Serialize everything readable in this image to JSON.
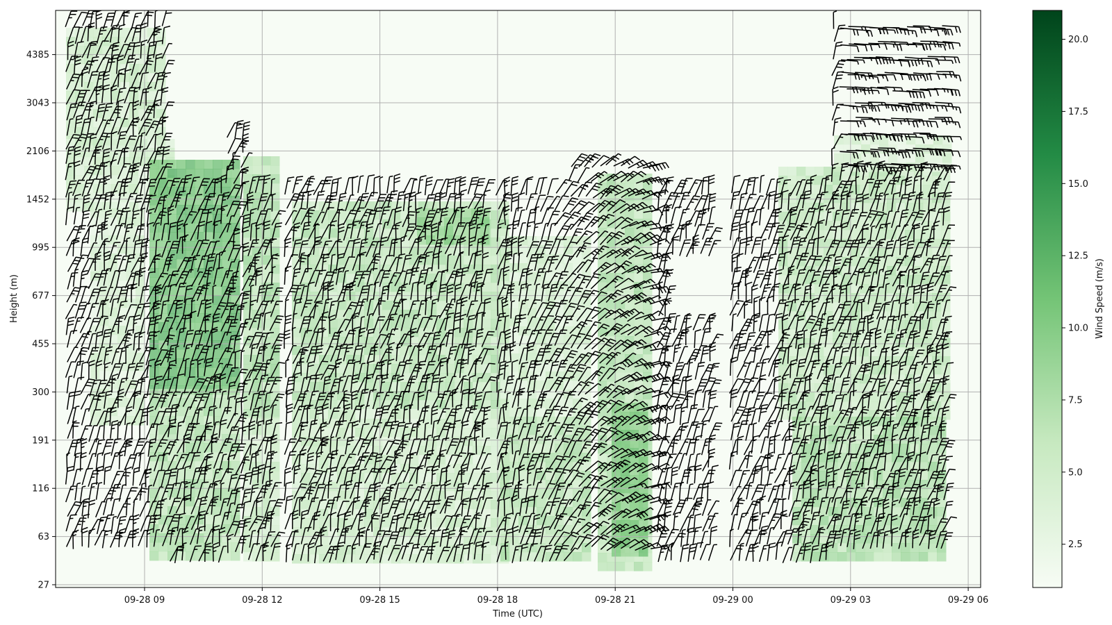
{
  "chart_data": {
    "type": "heatmap",
    "title": "",
    "xlabel": "Time (UTC)",
    "ylabel": "Height (m)",
    "x_ticks": [
      "09-28 09",
      "09-28 12",
      "09-28 15",
      "09-28 18",
      "09-28 21",
      "09-29 00",
      "09-29 03",
      "09-29 06"
    ],
    "x_range": [
      "09-28 06:45",
      "09-29 06:15"
    ],
    "y_ticks": [
      27,
      63,
      116,
      191,
      300,
      455,
      677,
      995,
      1452,
      2106,
      3043,
      4385
    ],
    "y_scale": "height levels (non-linear, tick labels at equal spacing)",
    "grid": true,
    "overlay": "wind barbs",
    "colorbar": {
      "label": "Wind Speed (m/s)",
      "ticks": [
        "2.5",
        "5.0",
        "7.5",
        "10.0",
        "12.5",
        "15.0",
        "17.5",
        "20.0"
      ],
      "range": [
        1,
        21
      ],
      "colormap_colors": [
        "#f7fcf5",
        "#c7e9c0",
        "#74c476",
        "#238b45",
        "#00441b"
      ]
    }
  }
}
